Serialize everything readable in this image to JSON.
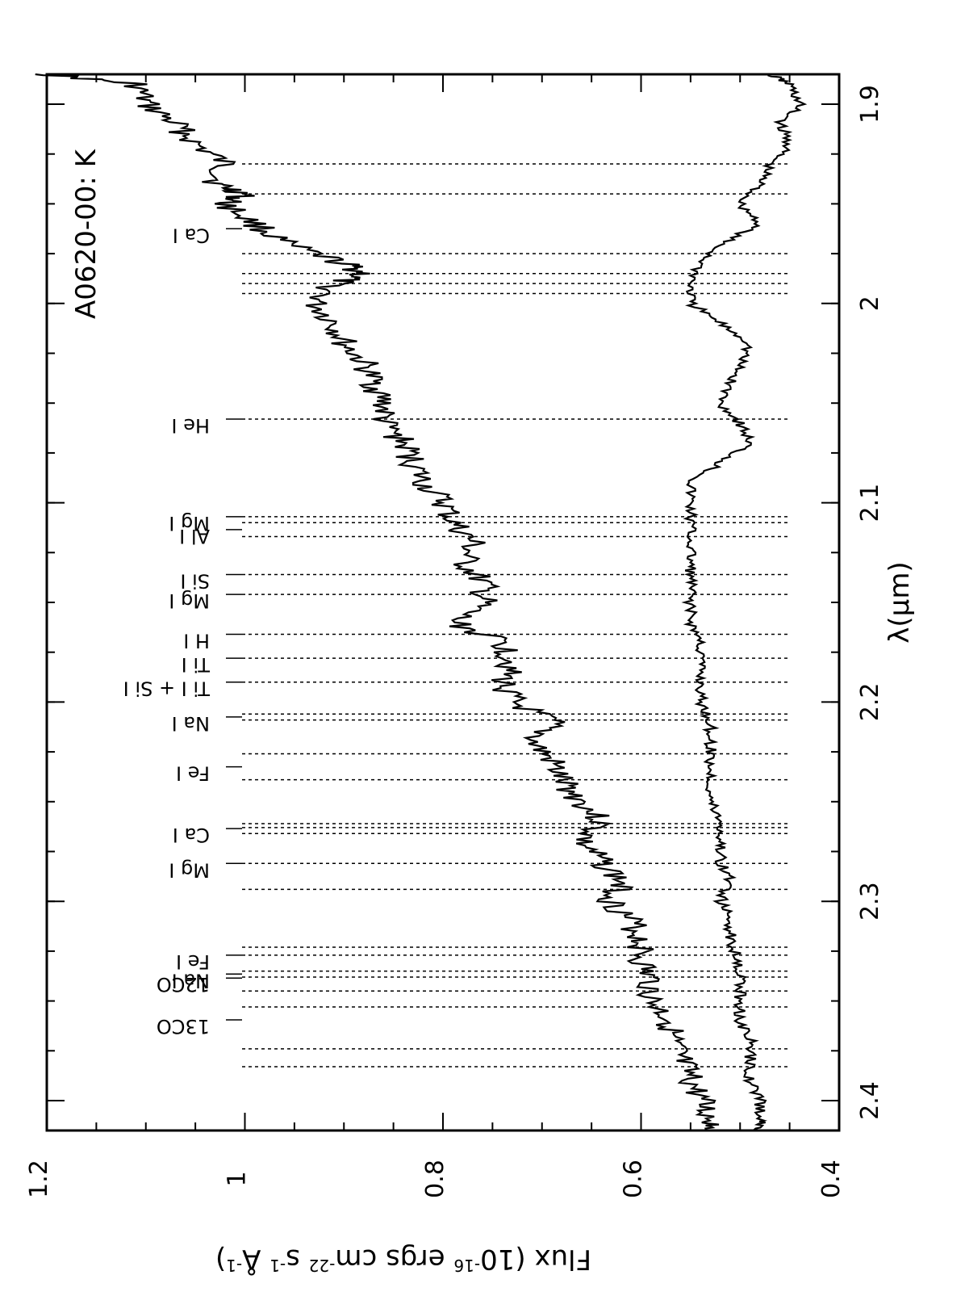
{
  "chart_data": {
    "type": "line",
    "title": "A0620-00:  K",
    "xlabel": "λ(μm)",
    "ylabel": "Flux (10",
    "ylabel_exp1": "-16",
    "ylabel_mid": " ergs cm",
    "ylabel_exp2": "-22",
    "ylabel_mid2": " s",
    "ylabel_exp3": "-1",
    "ylabel_mid3": " Å",
    "ylabel_exp4": "-1",
    "ylabel_end": ")",
    "xlim": [
      1.885,
      2.415
    ],
    "ylim": [
      0.4,
      1.2
    ],
    "x_ticks": [
      1.9,
      2.0,
      2.1,
      2.2,
      2.3,
      2.4
    ],
    "x_tick_labels": [
      "1.9",
      "2",
      "2.1",
      "2.2",
      "2.3",
      "2.4"
    ],
    "y_ticks": [
      0.4,
      0.6,
      0.8,
      1.0,
      1.2
    ],
    "y_tick_labels": [
      "0.4",
      "0.6",
      "0.8",
      "1",
      "1.2"
    ],
    "grid": false,
    "series": [
      {
        "x": [
          1.885,
          1.89,
          1.9,
          1.91,
          1.92,
          1.93,
          1.94,
          1.945,
          1.95,
          1.96,
          1.97,
          1.98,
          1.985,
          1.99,
          2.0,
          2.01,
          2.02,
          2.03,
          2.04,
          2.05,
          2.06,
          2.07,
          2.08,
          2.09,
          2.1,
          2.11,
          2.12,
          2.13,
          2.14,
          2.15,
          2.16,
          2.17,
          2.18,
          2.19,
          2.2,
          2.21,
          2.22,
          2.23,
          2.24,
          2.25,
          2.26,
          2.27,
          2.28,
          2.29,
          2.3,
          2.31,
          2.32,
          2.33,
          2.34,
          2.35,
          2.36,
          2.37,
          2.38,
          2.39,
          2.4,
          2.41,
          2.415
        ],
        "y": [
          1.2,
          1.11,
          1.1,
          1.07,
          1.05,
          1.02,
          1.03,
          1.0,
          1.02,
          0.99,
          0.96,
          0.9,
          0.88,
          0.91,
          0.93,
          0.91,
          0.9,
          0.88,
          0.87,
          0.86,
          0.86,
          0.84,
          0.83,
          0.82,
          0.8,
          0.79,
          0.77,
          0.78,
          0.76,
          0.76,
          0.79,
          0.74,
          0.73,
          0.74,
          0.73,
          0.69,
          0.71,
          0.69,
          0.68,
          0.66,
          0.64,
          0.66,
          0.64,
          0.62,
          0.63,
          0.61,
          0.6,
          0.6,
          0.59,
          0.59,
          0.57,
          0.57,
          0.56,
          0.55,
          0.54,
          0.53,
          0.52
        ]
      },
      {
        "x": [
          1.885,
          1.89,
          1.9,
          1.91,
          1.92,
          1.93,
          1.94,
          1.95,
          1.96,
          1.97,
          1.98,
          1.99,
          2.0,
          2.01,
          2.02,
          2.03,
          2.04,
          2.05,
          2.06,
          2.07,
          2.08,
          2.09,
          2.1,
          2.11,
          2.12,
          2.13,
          2.14,
          2.15,
          2.16,
          2.17,
          2.18,
          2.19,
          2.2,
          2.21,
          2.22,
          2.23,
          2.24,
          2.25,
          2.26,
          2.27,
          2.28,
          2.29,
          2.3,
          2.31,
          2.32,
          2.33,
          2.34,
          2.35,
          2.36,
          2.37,
          2.38,
          2.39,
          2.4,
          2.41,
          2.415
        ],
        "y": [
          0.47,
          0.45,
          0.44,
          0.46,
          0.45,
          0.47,
          0.48,
          0.5,
          0.48,
          0.52,
          0.54,
          0.55,
          0.55,
          0.52,
          0.49,
          0.5,
          0.51,
          0.52,
          0.5,
          0.49,
          0.52,
          0.55,
          0.55,
          0.55,
          0.55,
          0.55,
          0.55,
          0.55,
          0.55,
          0.54,
          0.54,
          0.54,
          0.54,
          0.53,
          0.53,
          0.53,
          0.53,
          0.53,
          0.52,
          0.52,
          0.52,
          0.51,
          0.52,
          0.51,
          0.51,
          0.5,
          0.5,
          0.5,
          0.5,
          0.49,
          0.49,
          0.49,
          0.48,
          0.48,
          0.48
        ]
      }
    ],
    "line_labels": [
      {
        "text": "Ca I",
        "lines": [
          1.93,
          1.945,
          1.975,
          1.985,
          1.99,
          1.995
        ]
      },
      {
        "text": "He I",
        "lines": [
          2.058
        ]
      },
      {
        "text": "Mg I",
        "lines": [
          2.107
        ]
      },
      {
        "text": "Al I",
        "lines": [
          2.11,
          2.117
        ]
      },
      {
        "text": "Si I",
        "lines": [
          2.136
        ]
      },
      {
        "text": "Mg I",
        "lines": [
          2.146
        ]
      },
      {
        "text": "H I",
        "lines": [
          2.166
        ]
      },
      {
        "text": "Ti I",
        "lines": [
          2.178
        ]
      },
      {
        "text": "Ti I + Si I",
        "lines": [
          2.19
        ]
      },
      {
        "text": "Na I",
        "lines": [
          2.206,
          2.209
        ]
      },
      {
        "text": "Fe I",
        "lines": [
          2.226,
          2.239
        ]
      },
      {
        "text": "Ca I",
        "lines": [
          2.261,
          2.263,
          2.266
        ]
      },
      {
        "text": "Mg I",
        "lines": [
          2.281
        ]
      },
      {
        "text": "12CO",
        "lines": [
          2.294,
          2.323,
          2.353,
          2.383
        ]
      },
      {
        "text": "Na I",
        "lines": [
          2.335,
          2.338
        ]
      },
      {
        "text": "Fe I",
        "lines": [
          2.327
        ]
      },
      {
        "text": "13CO",
        "lines": [
          2.345,
          2.374
        ]
      }
    ]
  }
}
